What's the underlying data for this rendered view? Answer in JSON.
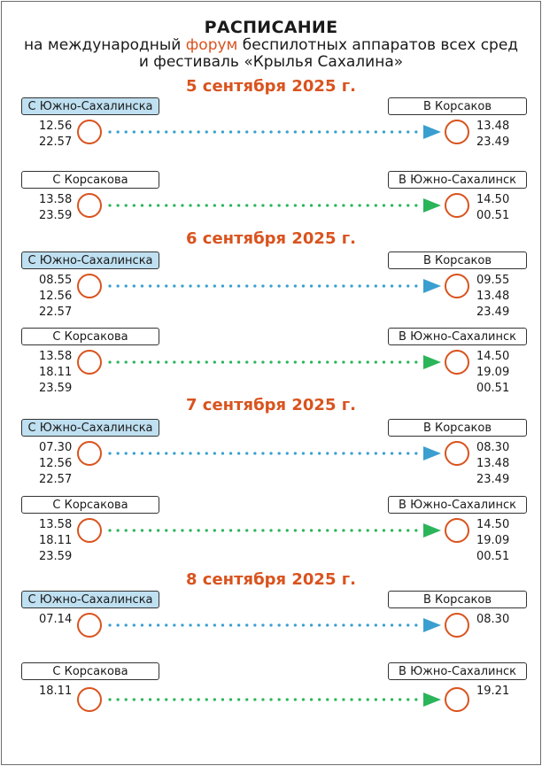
{
  "header": {
    "title": "РАСПИСАНИЕ",
    "line1_pre": "на международный ",
    "line1_accent": "форум",
    "line1_post": " беспилотных аппаратов всех сред",
    "line2": "и фестиваль «Крылья Сахалина»"
  },
  "colors": {
    "accent": "#d9531e",
    "blue": "#3a9fd0",
    "green": "#2bb55a",
    "blue_label_bg": "#bfe0f1"
  },
  "days": [
    {
      "date": "5 сентября 2025 г.",
      "routes": [
        {
          "from": "С Южно-Сахалинска",
          "to": "В Корсаков",
          "dep": [
            "12.56",
            "22.57"
          ],
          "arr": [
            "13.48",
            "23.49"
          ],
          "color": "blue"
        },
        {
          "from": "С Корсакова",
          "to": "В Южно-Сахалинск",
          "dep": [
            "13.58",
            "23.59"
          ],
          "arr": [
            "14.50",
            "00.51"
          ],
          "color": "green"
        }
      ]
    },
    {
      "date": "6 сентября 2025 г.",
      "routes": [
        {
          "from": "С Южно-Сахалинска",
          "to": "В Корсаков",
          "dep": [
            "08.55",
            "12.56",
            "22.57"
          ],
          "arr": [
            "09.55",
            "13.48",
            "23.49"
          ],
          "color": "blue"
        },
        {
          "from": "С Корсакова",
          "to": "В Южно-Сахалинск",
          "dep": [
            "13.58",
            "18.11",
            "23.59"
          ],
          "arr": [
            "14.50",
            "19.09",
            "00.51"
          ],
          "color": "green"
        }
      ]
    },
    {
      "date": "7 сентября 2025 г.",
      "routes": [
        {
          "from": "С Южно-Сахалинска",
          "to": "В Корсаков",
          "dep": [
            "07.30",
            "12.56",
            "22.57"
          ],
          "arr": [
            "08.30",
            "13.48",
            "23.49"
          ],
          "color": "blue"
        },
        {
          "from": "С Корсакова",
          "to": "В Южно-Сахалинск",
          "dep": [
            "13.58",
            "18.11",
            "23.59"
          ],
          "arr": [
            "14.50",
            "19.09",
            "00.51"
          ],
          "color": "green"
        }
      ]
    },
    {
      "date": "8 сентября 2025 г.",
      "routes": [
        {
          "from": "С Южно-Сахалинска",
          "to": "В Корсаков",
          "dep": [
            "07.14"
          ],
          "arr": [
            "08.30"
          ],
          "color": "blue"
        },
        {
          "from": "С Корсакова",
          "to": "В Южно-Сахалинск",
          "dep": [
            "18.11"
          ],
          "arr": [
            "19.21"
          ],
          "color": "green"
        }
      ]
    }
  ]
}
